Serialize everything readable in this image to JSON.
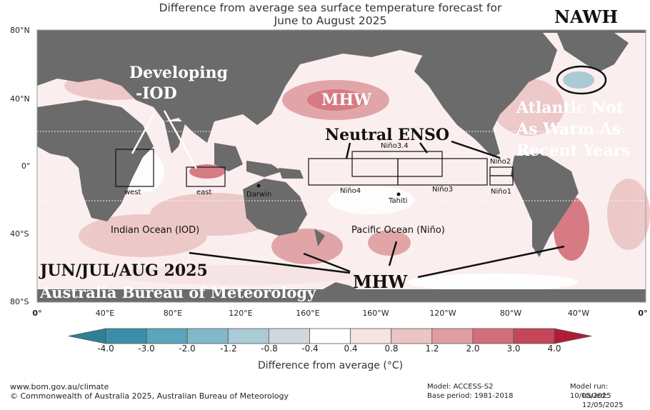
{
  "header": {
    "title_line1": "Difference from average sea surface temperature forecast for",
    "title_line2": "June to August 2025"
  },
  "axes": {
    "lat_labels": [
      "80°N",
      "40°N",
      "0°",
      "40°S",
      "80°S"
    ],
    "lon_labels": [
      "0°",
      "40°E",
      "80°E",
      "120°E",
      "160°E",
      "160°W",
      "120°W",
      "80°W",
      "40°W",
      "0°"
    ]
  },
  "boxes": {
    "west": "west",
    "east": "east",
    "nino4": "Niño4",
    "nino34": "Niño3.4",
    "nino3": "Niño3",
    "nino2": "Niño2",
    "nino1": "Niño1"
  },
  "places": {
    "darwin": "Darwin",
    "tahiti": "Tahiti"
  },
  "regions": {
    "indian": "Indian Ocean (IOD)",
    "pacific": "Pacific Ocean (Niño)"
  },
  "annotations": {
    "nawh": "NAWH",
    "developing_line1": "Developing",
    "developing_line2": "-IOD",
    "mhw_north": "MHW",
    "neutral_enso": "Neutral ENSO",
    "atlantic_line1": "Atlantic Not",
    "atlantic_line2": "As Warm As",
    "atlantic_line3": "Recent Years",
    "season": "JUN/JUL/AUG 2025",
    "agency": "Australia Bureau of Meteorology",
    "mhw_south": "MHW"
  },
  "colorbar": {
    "ticks": [
      "-4.0",
      "-3.0",
      "-2.0",
      "-1.2",
      "-0.8",
      "-0.4",
      "0.4",
      "0.8",
      "1.2",
      "2.0",
      "3.0",
      "4.0"
    ],
    "colors": [
      "#3a8fa8",
      "#5aa5bb",
      "#82b9ca",
      "#a9cbd5",
      "#cfd9dc",
      "#ffffff",
      "#f6e3e3",
      "#ecc4c4",
      "#df9ea1",
      "#d26f78",
      "#c34758",
      "#b01c38",
      "#2f7f97"
    ],
    "title": "Difference from average (°C)"
  },
  "footer": {
    "url": "www.bom.gov.au/climate",
    "copyright": "© Commonwealth of Australia 2025, Australian Bureau of Meteorology",
    "model": "Model: ACCESS-S2",
    "base_period": "Base period: 1981-2018",
    "model_run": "Model run: 10/05/2025",
    "issued": "Issued: 12/05/2025"
  }
}
